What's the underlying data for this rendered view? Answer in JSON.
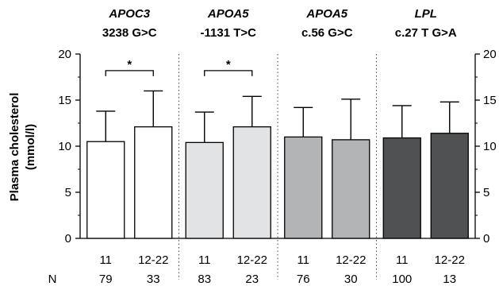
{
  "chart_data": {
    "type": "bar",
    "ylabel_line1": "Plasma cholesterol",
    "ylabel_line2": "(mmol/l)",
    "ylim": [
      0,
      20
    ],
    "yticks": [
      0,
      5,
      10,
      15,
      20
    ],
    "n_label": "N",
    "groups": [
      {
        "gene": "APOC3",
        "variant": "3238 G>C",
        "color": "#ffffff",
        "bars": [
          {
            "category": "11",
            "value": 10.5,
            "error": 3.3,
            "n": "79"
          },
          {
            "category": "12-22",
            "value": 12.1,
            "error": 3.9,
            "n": "33"
          }
        ],
        "significance": "*"
      },
      {
        "gene": "APOA5",
        "variant": "-1131 T>C",
        "color": "#e2e3e4",
        "bars": [
          {
            "category": "11",
            "value": 10.4,
            "error": 3.3,
            "n": "83"
          },
          {
            "category": "12-22",
            "value": 12.1,
            "error": 3.3,
            "n": "23"
          }
        ],
        "significance": "*"
      },
      {
        "gene": "APOA5",
        "variant": "c.56 G>C",
        "color": "#b3b4b6",
        "bars": [
          {
            "category": "11",
            "value": 11.0,
            "error": 3.2,
            "n": "76"
          },
          {
            "category": "12-22",
            "value": 10.7,
            "error": 4.4,
            "n": "30"
          }
        ],
        "significance": ""
      },
      {
        "gene": "LPL",
        "variant": "c.27 T G>A",
        "color": "#505152",
        "bars": [
          {
            "category": "11",
            "value": 10.9,
            "error": 3.5,
            "n": "100"
          },
          {
            "category": "12-22",
            "value": 11.4,
            "error": 3.4,
            "n": "13"
          }
        ],
        "significance": ""
      }
    ]
  }
}
